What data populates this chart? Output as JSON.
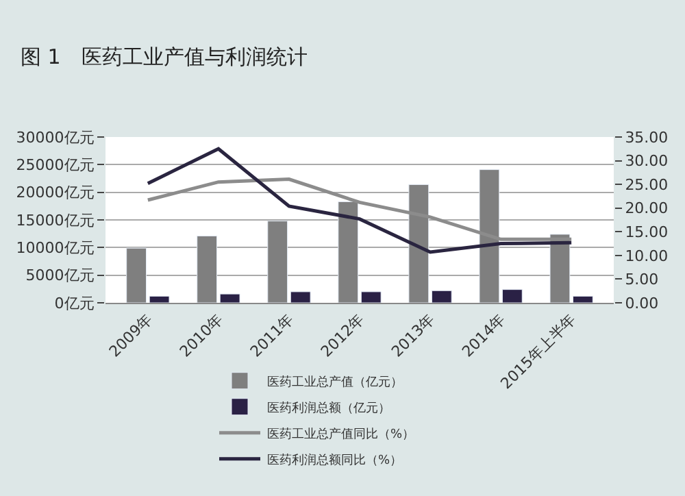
{
  "chart_data": {
    "type": "bar",
    "title": "图 1　医药工业产值与利润统计",
    "categories": [
      "2009年",
      "2010年",
      "2011年",
      "2012年",
      "2013年",
      "2014年",
      "2015年上半年"
    ],
    "series": [
      {
        "name": "医药工业总产值（亿元）",
        "color": "#7f7f7f",
        "values": [
          9900,
          12100,
          14800,
          18300,
          21400,
          24100,
          12400
        ]
      },
      {
        "name": "医药利润总额（亿元）",
        "color": "#2a2145",
        "values": [
          1200,
          1600,
          2000,
          2000,
          2200,
          2400,
          1200
        ]
      },
      {
        "name": "医药工业总产值同比（%）",
        "type": "line",
        "axis": "y2",
        "color": "#8c8c8c",
        "values": [
          21.7,
          25.5,
          26.1,
          21.2,
          18.1,
          13.4,
          13.4
        ]
      },
      {
        "name": "医药利润总额同比（%）",
        "type": "line",
        "axis": "y2",
        "color": "#2a2540",
        "values": [
          25.2,
          32.5,
          20.4,
          17.7,
          10.7,
          12.5,
          12.7
        ]
      }
    ],
    "ylim": [
      0,
      30000
    ],
    "yticks": [
      {
        "value": 0,
        "label": "0亿元"
      },
      {
        "value": 5000,
        "label": "5000亿元"
      },
      {
        "value": 10000,
        "label": "10000亿元"
      },
      {
        "value": 15000,
        "label": "15000亿元"
      },
      {
        "value": 20000,
        "label": "20000亿元"
      },
      {
        "value": 25000,
        "label": "25000亿元"
      },
      {
        "value": 30000,
        "label": "30000亿元"
      }
    ],
    "y2lim": [
      0,
      35
    ],
    "y2ticks": [
      {
        "value": 0,
        "label": "0.00"
      },
      {
        "value": 5,
        "label": "5.00"
      },
      {
        "value": 10,
        "label": "10.00"
      },
      {
        "value": 15,
        "label": "15.00"
      },
      {
        "value": 20,
        "label": "20.00"
      },
      {
        "value": 25,
        "label": "25.00"
      },
      {
        "value": 30,
        "label": "30.00"
      },
      {
        "value": 35,
        "label": "35.00"
      }
    ],
    "grid": "y",
    "legend": "bottom",
    "marker": "none",
    "line_style": "solid"
  }
}
